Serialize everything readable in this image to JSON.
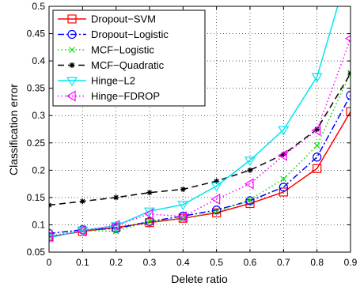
{
  "chart_data": {
    "type": "line",
    "xlabel": "Delete ratio",
    "ylabel": "Classification error",
    "xlim": [
      0,
      0.9
    ],
    "ylim": [
      0.05,
      0.5
    ],
    "grid": true,
    "legend_position": "top-left",
    "x": [
      0,
      0.1,
      0.2,
      0.3,
      0.4,
      0.5,
      0.6,
      0.7,
      0.8,
      0.9
    ],
    "x_ticks": [
      "0",
      "0.1",
      "0.2",
      "0.3",
      "0.4",
      "0.5",
      "0.6",
      "0.7",
      "0.8",
      "0.9"
    ],
    "y_ticks": [
      "0.05",
      "0.1",
      "0.15",
      "0.2",
      "0.25",
      "0.3",
      "0.35",
      "0.4",
      "0.45",
      "0.5"
    ],
    "series": [
      {
        "name": "Dropout−SVM",
        "color": "#ff0000",
        "dash": "solid",
        "marker": "square",
        "values": [
          0.078,
          0.088,
          0.095,
          0.104,
          0.112,
          0.122,
          0.139,
          0.16,
          0.203,
          0.307
        ]
      },
      {
        "name": "Dropout−Logistic",
        "color": "#0000ff",
        "dash": "dashdot",
        "marker": "circle",
        "values": [
          0.084,
          0.091,
          0.093,
          0.106,
          0.116,
          0.127,
          0.144,
          0.169,
          0.224,
          0.337
        ]
      },
      {
        "name": "MCF−Logistic",
        "color": "#00dd00",
        "dash": "dotted",
        "marker": "x",
        "values": [
          0.079,
          0.09,
          0.088,
          0.107,
          0.111,
          0.124,
          0.146,
          0.184,
          0.245,
          0.378
        ]
      },
      {
        "name": "MCF−Quadratic",
        "color": "#000000",
        "dash": "dashed",
        "marker": "star",
        "values": [
          0.136,
          0.143,
          0.15,
          0.159,
          0.165,
          0.18,
          0.2,
          0.229,
          0.275,
          0.377
        ]
      },
      {
        "name": "Hinge−L2",
        "color": "#00e5ee",
        "dash": "solid",
        "marker": "triangle-down",
        "values": [
          0.076,
          0.09,
          0.098,
          0.125,
          0.137,
          0.171,
          0.218,
          0.274,
          0.371,
          0.58
        ]
      },
      {
        "name": "Hinge−FDROP",
        "color": "#ff00ff",
        "dash": "dotted",
        "marker": "triangle-left",
        "values": [
          0.078,
          0.089,
          0.099,
          0.12,
          0.115,
          0.147,
          0.175,
          0.227,
          0.273,
          0.441
        ]
      }
    ]
  }
}
